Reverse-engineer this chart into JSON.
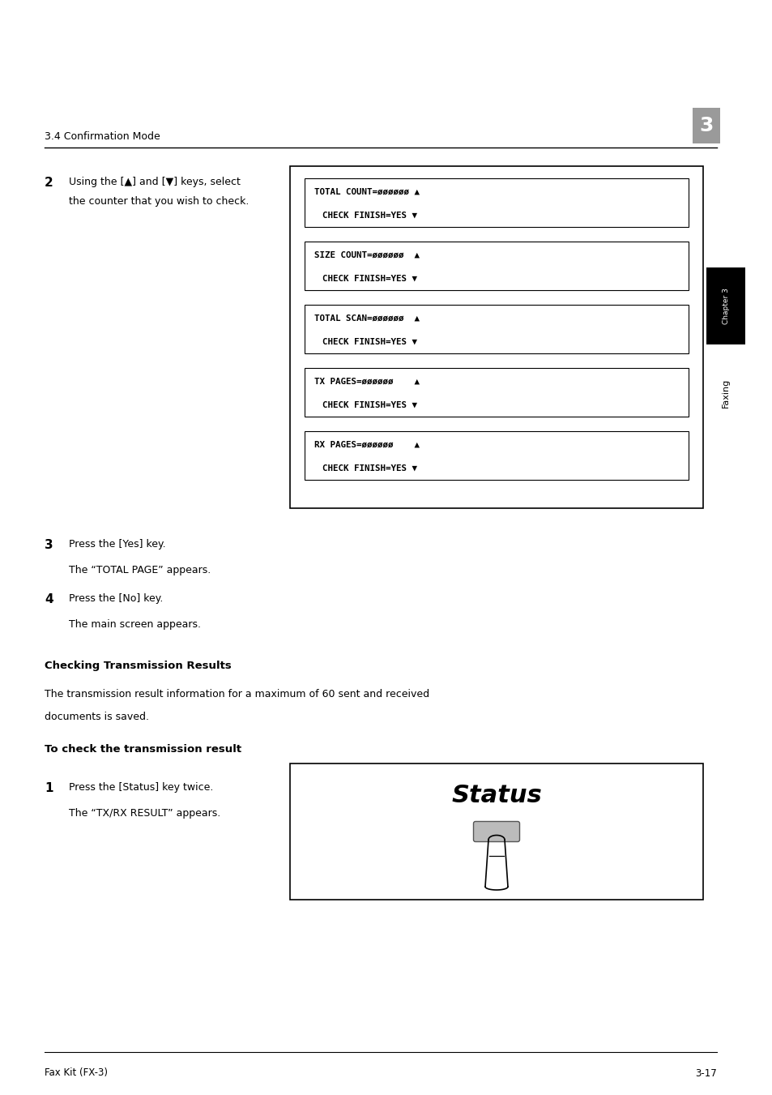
{
  "bg_color": "#ffffff",
  "page_width": 9.54,
  "page_height": 13.51,
  "header_text": "3.4 Confirmation Mode",
  "header_number": "3",
  "step2_label": "2",
  "step2_text_line1": "Using the [▲] and [▼] keys, select",
  "step2_text_line2": "the counter that you wish to check.",
  "lcd_boxes": [
    {
      "line1": "TOTAL COUNT=øøøøøø ▲",
      "line2": "CHECK FINISH=YES ▼"
    },
    {
      "line1": "SIZE COUNT=øøøøøø  ▲",
      "line2": "CHECK FINISH=YES ▼"
    },
    {
      "line1": "TOTAL SCAN=øøøøøø  ▲",
      "line2": "CHECK FINISH=YES ▼"
    },
    {
      "line1": "TX PAGES=øøøøøø    ▲",
      "line2": "CHECK FINISH=YES ▼"
    },
    {
      "line1": "RX PAGES=øøøøøø    ▲",
      "line2": "CHECK FINISH=YES ▼"
    }
  ],
  "sidebar_chapter": "Chapter 3",
  "sidebar_faxing": "Faxing",
  "step3_label": "3",
  "step3_text": "Press the [Yes] key.",
  "step3_sub": "The “TOTAL PAGE” appears.",
  "step4_label": "4",
  "step4_text": "Press the [No] key.",
  "step4_sub": "The main screen appears.",
  "section_heading": "Checking Transmission Results",
  "section_body1": "The transmission result information for a maximum of 60 sent and received",
  "section_body2": "documents is saved.",
  "subsection_heading": "To check the transmission result",
  "step1_label": "1",
  "step1_text": "Press the [Status] key twice.",
  "step1_sub": "The “TX/RX RESULT” appears.",
  "status_label": "Status",
  "footer_left": "Fax Kit (FX-3)",
  "footer_right": "3-17"
}
